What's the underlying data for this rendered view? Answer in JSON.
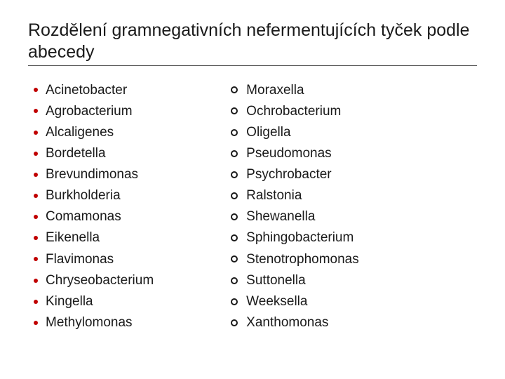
{
  "title": "Rozdělení gramnegativních nefermentujících tyček podle abecedy",
  "left_items": [
    "Acinetobacter",
    "Agrobacterium",
    "Alcaligenes",
    "Bordetella",
    "Brevundimonas",
    "Burkholderia",
    "Comamonas",
    "Eikenella",
    "Flavimonas",
    "Chryseobacterium",
    "Kingella",
    "Methylomonas"
  ],
  "right_items": [
    "Moraxella",
    "Ochrobacterium",
    "Oligella",
    "Pseudomonas",
    "Psychrobacter",
    "Ralstonia",
    "Shewanella",
    "Sphingobacterium",
    "Stenotrophomonas",
    "Suttonella",
    "Weeksella",
    "Xanthomonas"
  ],
  "style": {
    "slide_width": 720,
    "slide_height": 540,
    "background_color": "#ffffff",
    "title_fontsize": 25,
    "title_color": "#1a1a1a",
    "title_underline_color": "#555555",
    "label_fontsize": 19,
    "label_color": "#1a1a1a",
    "left_bullet": {
      "type": "filled-dot",
      "color": "#c00000",
      "diameter": 6
    },
    "right_bullet": {
      "type": "open-circle",
      "border_color": "#1a1a1a",
      "border_width": 2,
      "diameter": 10
    },
    "column_gap": 70,
    "item_spacing": 4.5
  }
}
